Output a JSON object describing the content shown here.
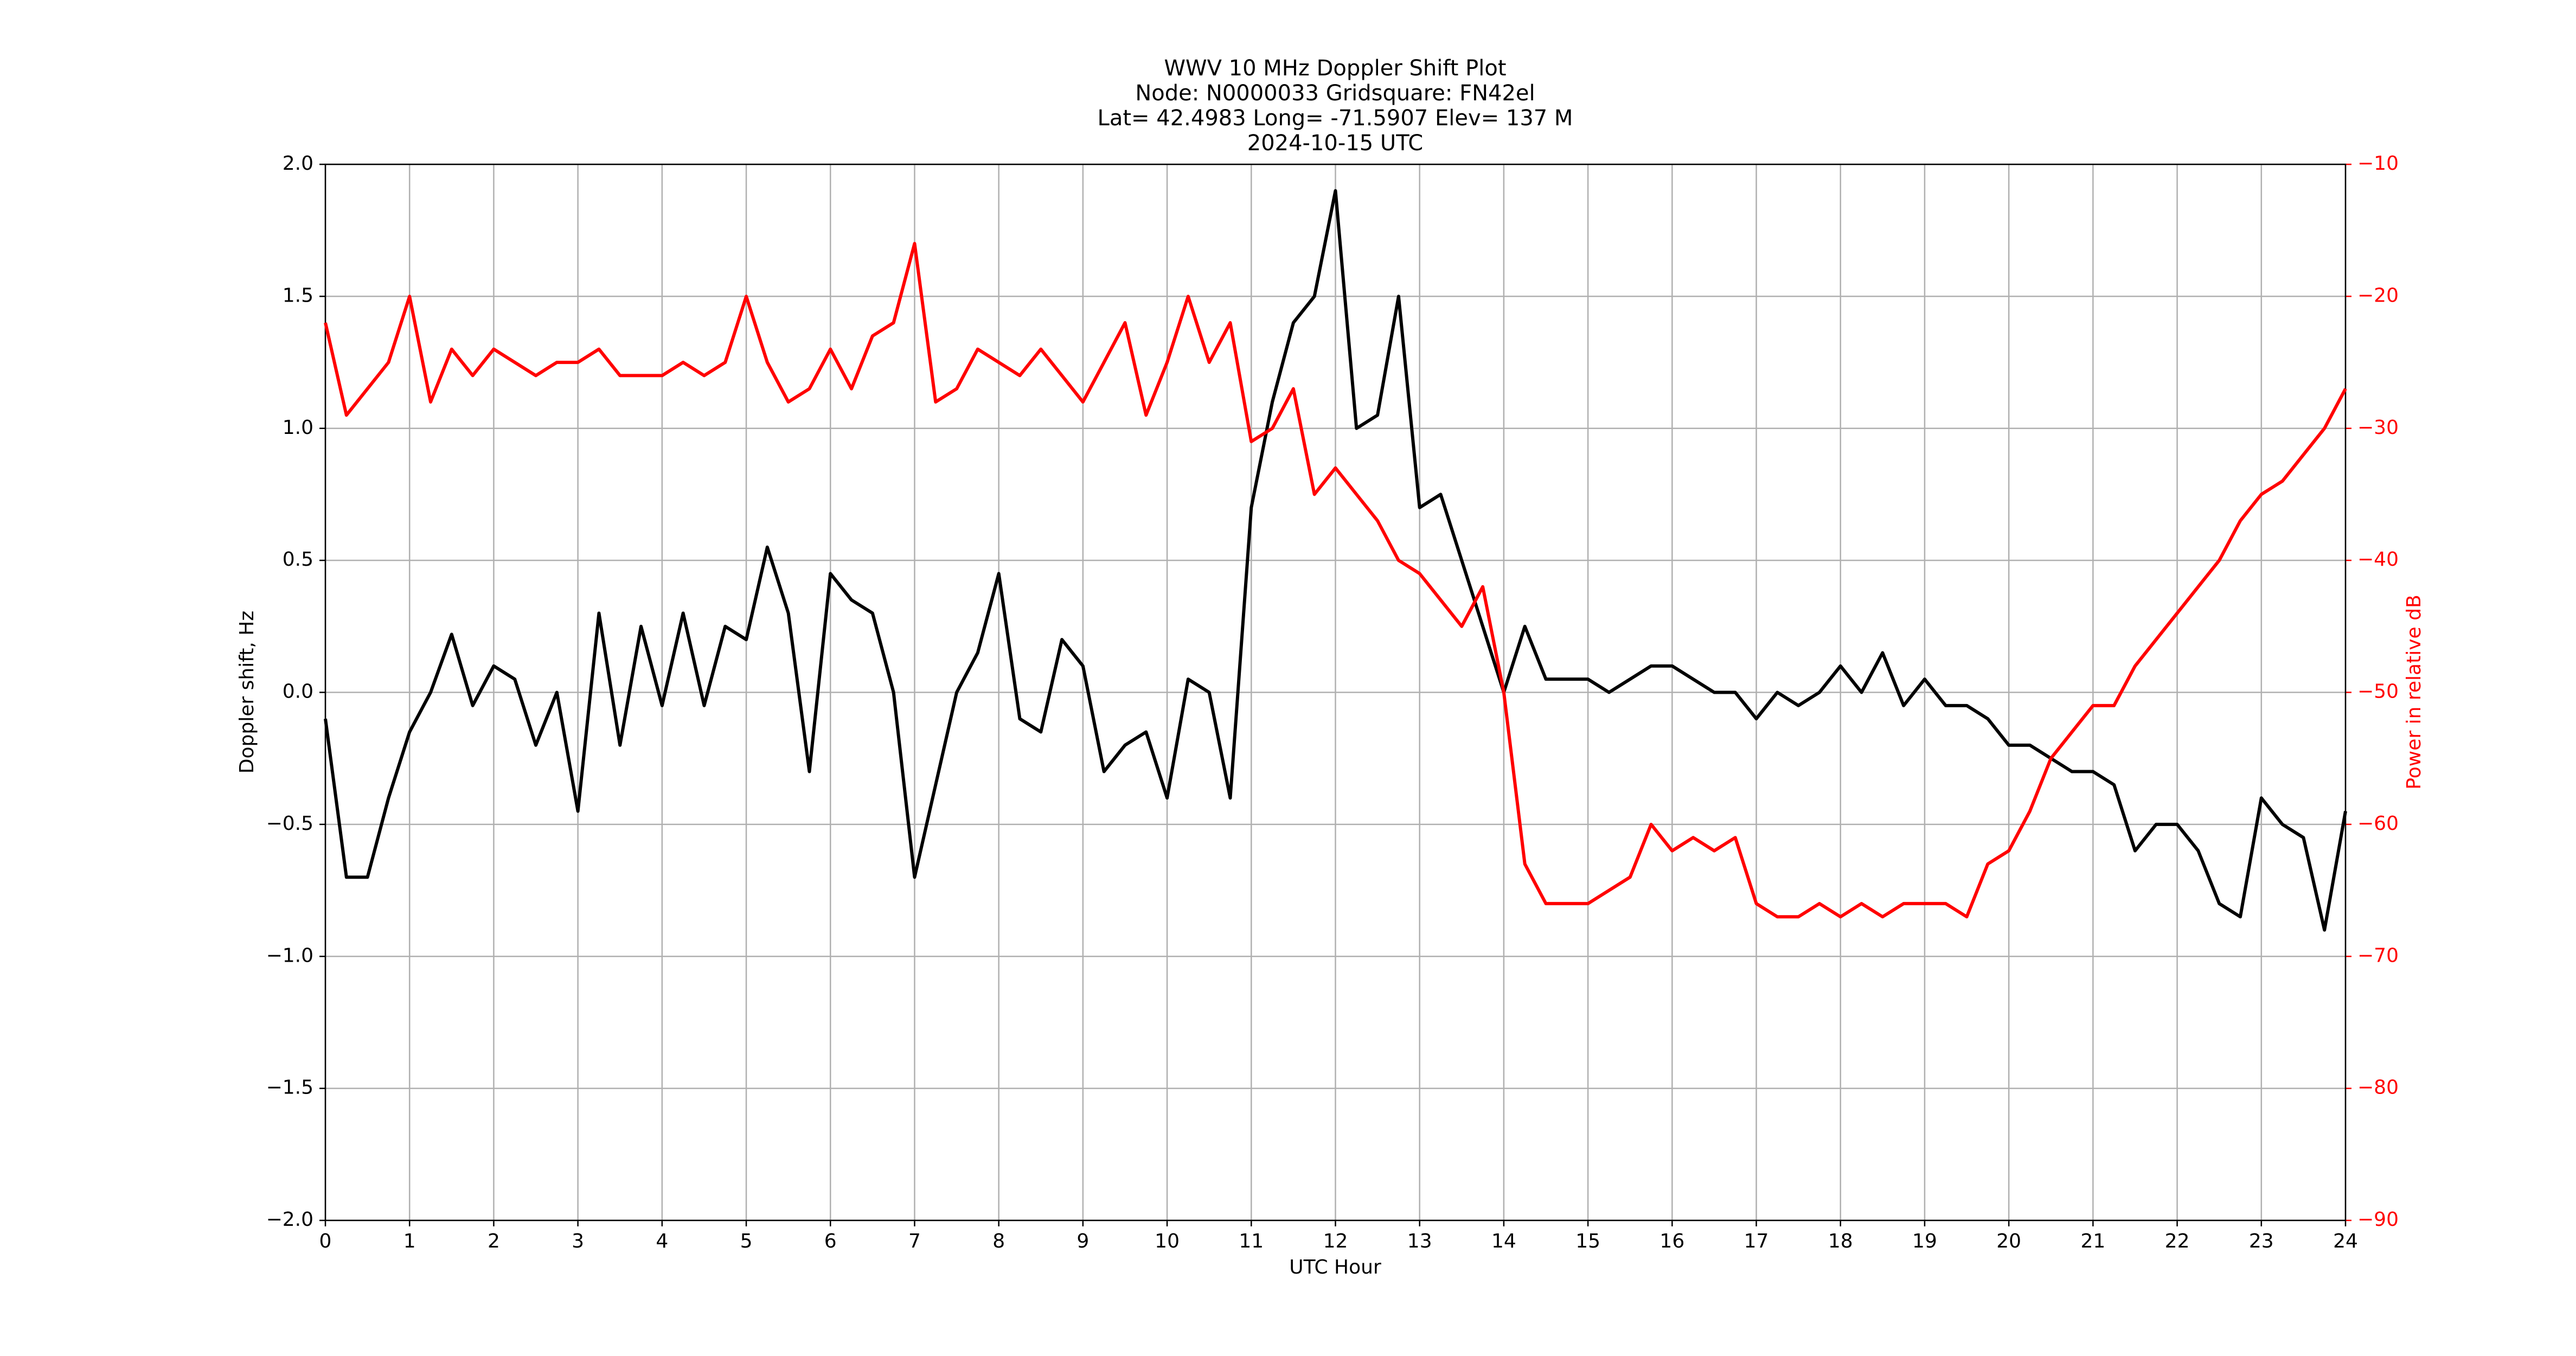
{
  "chart_data": {
    "type": "line",
    "title": [
      "WWV 10 MHz Doppler Shift Plot",
      "Node:  N0000033     Gridsquare:  FN42el",
      "Lat= 42.4983    Long= -71.5907    Elev= 137 M",
      "2024-10-15  UTC"
    ],
    "x_label": "UTC Hour",
    "y_label": "Doppler shift, Hz",
    "y2_label": "Power in relative dB",
    "x": [
      0,
      0.25,
      0.5,
      0.75,
      1,
      1.25,
      1.5,
      1.75,
      2,
      2.25,
      2.5,
      2.75,
      3,
      3.25,
      3.5,
      3.75,
      4,
      4.25,
      4.5,
      4.75,
      5,
      5.25,
      5.5,
      5.75,
      6,
      6.25,
      6.5,
      6.75,
      7,
      7.25,
      7.5,
      7.75,
      8,
      8.25,
      8.5,
      8.75,
      9,
      9.25,
      9.5,
      9.75,
      10,
      10.25,
      10.5,
      10.75,
      11,
      11.25,
      11.5,
      11.75,
      12,
      12.25,
      12.5,
      12.75,
      13,
      13.25,
      13.5,
      13.75,
      14,
      14.25,
      14.5,
      14.75,
      15,
      15.25,
      15.5,
      15.75,
      16,
      16.25,
      16.5,
      16.75,
      17,
      17.25,
      17.5,
      17.75,
      18,
      18.25,
      18.5,
      18.75,
      19,
      19.25,
      19.5,
      19.75,
      20,
      20.25,
      20.5,
      20.75,
      21,
      21.25,
      21.5,
      21.75,
      22,
      22.25,
      22.5,
      22.75,
      23,
      23.25,
      23.5,
      23.75,
      24
    ],
    "series": [
      {
        "name": "Doppler shift",
        "color": "#000000",
        "axis": "y",
        "values": [
          -0.1,
          -0.7,
          -0.7,
          -0.4,
          -0.15,
          0.0,
          0.22,
          -0.05,
          0.1,
          0.05,
          -0.2,
          0.0,
          -0.45,
          0.3,
          -0.2,
          0.25,
          -0.05,
          0.3,
          -0.05,
          0.25,
          0.2,
          0.55,
          0.3,
          -0.3,
          0.45,
          0.35,
          0.3,
          0.0,
          -0.7,
          -0.35,
          0.0,
          0.15,
          0.45,
          -0.1,
          -0.15,
          0.2,
          0.1,
          -0.3,
          -0.2,
          -0.15,
          -0.4,
          0.05,
          0.0,
          -0.4,
          0.7,
          1.1,
          1.4,
          1.5,
          1.9,
          1.0,
          1.05,
          1.5,
          0.7,
          0.75,
          0.5,
          0.25,
          0.0,
          0.25,
          0.05,
          0.05,
          0.05,
          0.0,
          0.05,
          0.1,
          0.1,
          0.05,
          0.0,
          0.0,
          -0.1,
          0.0,
          -0.05,
          0.0,
          0.1,
          0.0,
          0.15,
          -0.05,
          0.05,
          -0.05,
          -0.05,
          -0.1,
          -0.2,
          -0.2,
          -0.25,
          -0.3,
          -0.3,
          -0.35,
          -0.6,
          -0.5,
          -0.5,
          -0.6,
          -0.8,
          -0.85,
          -0.4,
          -0.5,
          -0.55,
          -0.9,
          -0.45
        ]
      },
      {
        "name": "Power",
        "color": "#ff0000",
        "axis": "y2",
        "values": [
          -22,
          -29,
          -27,
          -25,
          -20,
          -28,
          -24,
          -26,
          -24,
          -25,
          -26,
          -25,
          -25,
          -24,
          -26,
          -26,
          -26,
          -25,
          -26,
          -25,
          -20,
          -25,
          -28,
          -27,
          -24,
          -27,
          -23,
          -22,
          -16,
          -28,
          -27,
          -24,
          -25,
          -26,
          -24,
          -26,
          -28,
          -25,
          -22,
          -29,
          -25,
          -20,
          -25,
          -22,
          -31,
          -30,
          -27,
          -35,
          -33,
          -35,
          -37,
          -40,
          -41,
          -43,
          -45,
          -42,
          -50,
          -63,
          -66,
          -66,
          -66,
          -65,
          -64,
          -60,
          -62,
          -61,
          -62,
          -61,
          -66,
          -67,
          -67,
          -66,
          -67,
          -66,
          -67,
          -66,
          -66,
          -66,
          -67,
          -63,
          -62,
          -59,
          -55,
          -53,
          -51,
          -51,
          -48,
          -46,
          -44,
          -42,
          -40,
          -37,
          -35,
          -34,
          -32,
          -30,
          -27
        ]
      }
    ],
    "xlim": [
      0,
      24
    ],
    "xticks": [
      0,
      1,
      2,
      3,
      4,
      5,
      6,
      7,
      8,
      9,
      10,
      11,
      12,
      13,
      14,
      15,
      16,
      17,
      18,
      19,
      20,
      21,
      22,
      23,
      24
    ],
    "ylim": [
      -2,
      2
    ],
    "yticks": [
      {
        "value": -2,
        "label": "−2.0"
      },
      {
        "value": -1.5,
        "label": "−1.5"
      },
      {
        "value": -1,
        "label": "−1.0"
      },
      {
        "value": -0.5,
        "label": "−0.5"
      },
      {
        "value": 0,
        "label": "0.0"
      },
      {
        "value": 0.5,
        "label": "0.5"
      },
      {
        "value": 1,
        "label": "1.0"
      },
      {
        "value": 1.5,
        "label": "1.5"
      },
      {
        "value": 2,
        "label": "2.0"
      }
    ],
    "y2lim": [
      -90,
      -10
    ],
    "y2ticks": [
      {
        "value": -90,
        "label": "−90"
      },
      {
        "value": -80,
        "label": "−80"
      },
      {
        "value": -70,
        "label": "−70"
      },
      {
        "value": -60,
        "label": "−60"
      },
      {
        "value": -50,
        "label": "−50"
      },
      {
        "value": -40,
        "label": "−40"
      },
      {
        "value": -30,
        "label": "−30"
      },
      {
        "value": -20,
        "label": "−20"
      },
      {
        "value": -10,
        "label": "−10"
      }
    ],
    "y2_color": "#ff0000",
    "grid": true
  }
}
